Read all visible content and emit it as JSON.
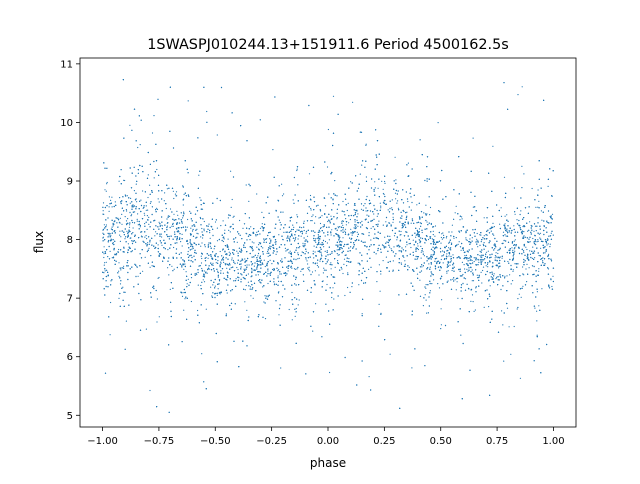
{
  "chart_data": {
    "type": "scatter",
    "title": "1SWASPJ010244.13+151911.6 Period 4500162.5s",
    "xlabel": "phase",
    "ylabel": "flux",
    "xlim": [
      -1.1,
      1.1
    ],
    "ylim": [
      4.8,
      11.1
    ],
    "xticks": [
      -1.0,
      -0.75,
      -0.5,
      -0.25,
      0.0,
      0.25,
      0.5,
      0.75,
      1.0
    ],
    "xtick_labels": [
      "−1.00",
      "−0.75",
      "−0.50",
      "−0.25",
      "0.00",
      "0.25",
      "0.50",
      "0.75",
      "1.00"
    ],
    "yticks": [
      5,
      6,
      7,
      8,
      9,
      10,
      11
    ],
    "ytick_labels": [
      "5",
      "6",
      "7",
      "8",
      "9",
      "10",
      "11"
    ],
    "grid": false,
    "point_color": "#1f77b4",
    "note_profile": "approximate binned mean flux vs phase (folded light curve repeated over two cycles)",
    "profile": {
      "phase": [
        0.0,
        0.1,
        0.15,
        0.2,
        0.3,
        0.4,
        0.5,
        0.6,
        0.7,
        0.8,
        0.9,
        1.0
      ],
      "mean_flux": [
        8.0,
        8.05,
        8.25,
        8.3,
        8.1,
        7.9,
        7.75,
        7.7,
        7.7,
        7.75,
        7.9,
        8.0
      ],
      "spread": [
        0.45,
        0.5,
        0.6,
        0.6,
        0.5,
        0.45,
        0.45,
        0.4,
        0.4,
        0.4,
        0.45,
        0.45
      ]
    },
    "n_points_rendered": 7000
  }
}
